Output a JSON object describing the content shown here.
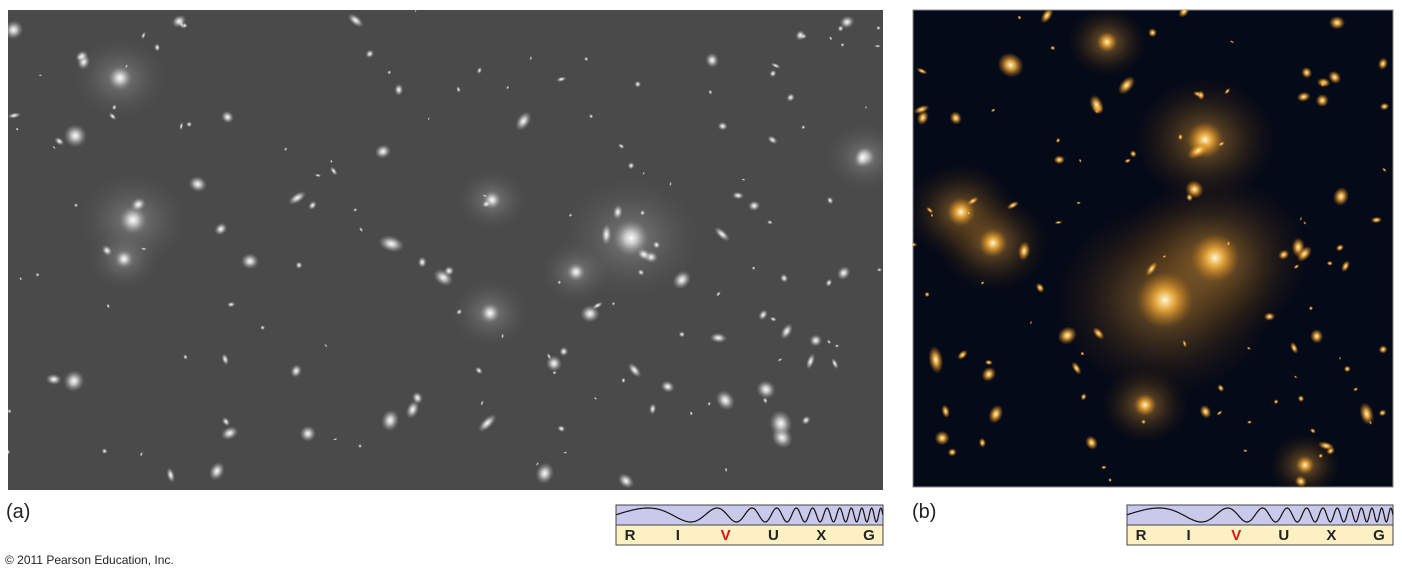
{
  "panels": [
    {
      "label": "(a)",
      "spectrum": [
        "R",
        "I",
        "V",
        "U",
        "X",
        "G"
      ]
    },
    {
      "label": "(b)",
      "spectrum": [
        "R",
        "I",
        "V",
        "U",
        "X",
        "G"
      ]
    }
  ],
  "footer": {
    "copyright": "© 2011 Pearson Education, Inc."
  }
}
